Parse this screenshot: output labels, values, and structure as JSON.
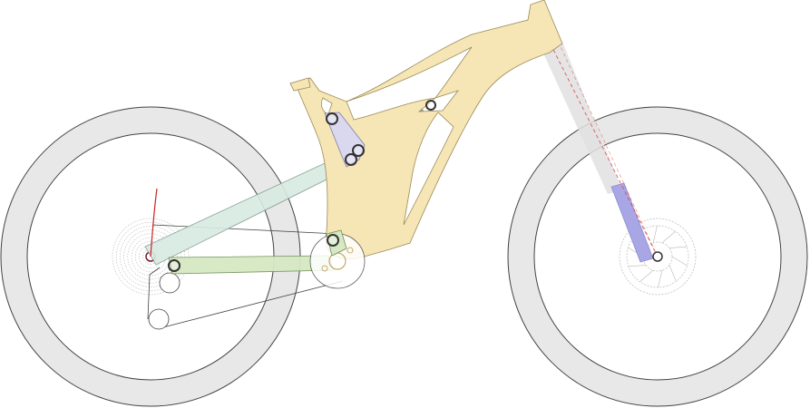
{
  "colors": {
    "background": "#ffffff",
    "tire_fill": "#e8e8e8",
    "tire_stroke": "#444444",
    "frame_fill": "#f7e6b5",
    "frame_stroke": "#9a8a58",
    "seatstay_fill": "#d8ebe3",
    "seatstay_stroke": "#7a9a8c",
    "chainstay_fill": "#d6e8c4",
    "chainstay_stroke": "#6f8f55",
    "rocker_fill": "#d8d8f2",
    "rocker_stroke": "#7777aa",
    "shock": "#bdbdbd",
    "shock_dark": "#8e8e8e",
    "fork_stanchion": "#e0e0e0",
    "fork_lower": "#a9a6e6",
    "fork_axis": "#d84a4a",
    "pivot_ring": "#333333",
    "hub": "#7a1a2a",
    "trace": "#cc2222",
    "chain": "#444444",
    "rotor": "#b8b8b8"
  },
  "icons": {
    "rear_wheel": "rear-wheel-icon",
    "front_wheel": "front-wheel-icon",
    "frame": "frame-icon",
    "shock": "shock-icon",
    "fork": "fork-icon"
  }
}
